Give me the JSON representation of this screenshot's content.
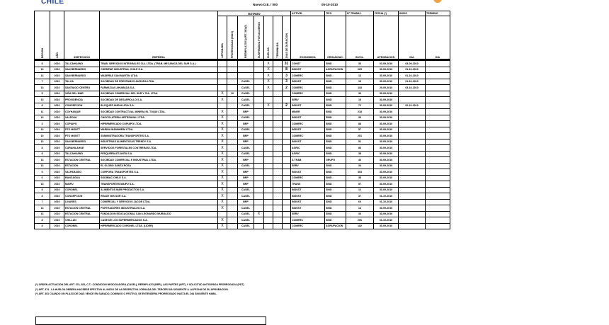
{
  "header": {
    "logo_text": "CHILE",
    "title": "Nuevo D.E. / 000",
    "date": "05-10-2010"
  },
  "columns": {
    "region": "REGION",
    "anio": "AÑO",
    "inspeccion": "INSPECCION",
    "empresa": "EMPRESA",
    "estado": "ESTADO",
    "estado_sub": [
      "APROBADA",
      "PRORROGADA (DIAS)",
      "REEMPLAZOS (ART. 381)(*)",
      "SUSPENDIDA POR ACUERDO",
      "HUELGA",
      "TERMINADA",
      "DIAS DE DURACION"
    ],
    "actividad_top": "ACTIVID.",
    "actividad_bottom": "ECONOMICA",
    "tipo_top": "TIPO",
    "tipo_bottom": "ORGANIZAC.",
    "trab_top": "N° TRABAJ.",
    "trab_bottom": "INVOL.",
    "fecha_top": "FECHA (*)",
    "fecha_bottom": "APROBACION",
    "inicio_top": "INICIO",
    "inicio_bottom": "DIA",
    "termino_top": "TERMINO",
    "termino_bottom": "DIA"
  },
  "rows": [
    {
      "region": "8",
      "anio": "2010",
      "inspeccion": "TALCAHUANO",
      "empresa": "TRAB. SERVICIOS INTEGRALES CIA. LTDA. (TRAB. MECANICA DEL SUR S.A.)",
      "estado": [
        "",
        "",
        "",
        "",
        "X",
        "",
        "31"
      ],
      "actividad": "CONST",
      "tipo": "SIND",
      "trab": "33",
      "fecha": "03-09-2010",
      "inicio": "03-09-2010",
      "termino": ""
    },
    {
      "region": "13",
      "anio": "2010",
      "inspeccion": "SAN BERNARDO",
      "empresa": "CHEMPAR INDUSTRIAL CHILE S.A.",
      "estado": [
        "",
        "",
        "",
        "",
        "X",
        "",
        "8"
      ],
      "actividad": "INDUST",
      "tipo": "AGRUPACION",
      "trab": "265",
      "fecha": "30-09-2010",
      "inicio": "01-10-2010",
      "termino": ""
    },
    {
      "region": "13",
      "anio": "2010",
      "inspeccion": "SAN BERNARDO",
      "empresa": "MADERAS SAN MARTIN LTDA.",
      "estado": [
        "",
        "",
        "",
        "",
        "X",
        "",
        "3"
      ],
      "actividad": "COMERC",
      "tipo": "SIND",
      "trab": "13",
      "fecha": "30-09-2010",
      "inicio": "01-10-2010",
      "termino": ""
    },
    {
      "region": "7",
      "anio": "2010",
      "inspeccion": "TALCA",
      "empresa": "SOCIEDAD DE PRESTAMOS AURORA LTDA.",
      "estado": [
        "",
        "",
        "CASEL",
        "",
        "X",
        "",
        "3"
      ],
      "actividad": "INDUST",
      "tipo": "SIND",
      "trab": "13",
      "fecha": "30-09-2010",
      "inicio": "01-10-2010",
      "termino": ""
    },
    {
      "region": "13",
      "anio": "2010",
      "inspeccion": "SANTIAGO CENTRO",
      "empresa": "FARMACIAS AHUMADA S.A.",
      "estado": [
        "",
        "",
        "CASEL",
        "",
        "X",
        "",
        "2"
      ],
      "actividad": "COMERC",
      "tipo": "SIND",
      "trab": "118",
      "fecha": "29-09-2010",
      "inicio": "03-10-2010",
      "termino": ""
    },
    {
      "region": "5",
      "anio": "2010",
      "inspeccion": "VIÑA DEL MAR",
      "empresa": "SOCIEDAD COMERCIAL DEL SUR Y CIA. LTDA.",
      "estado": [
        "X",
        "10",
        "CASEL",
        "",
        "",
        "",
        ""
      ],
      "actividad": "COMERC",
      "tipo": "SIND",
      "trab": "36",
      "fecha": "30-09-2010",
      "inicio": "",
      "termino": ""
    },
    {
      "region": "13",
      "anio": "2010",
      "inspeccion": "PROVIDENCIA",
      "empresa": "SOCIEDAD DE DESARROLLO S.A.",
      "estado": [
        "X",
        "",
        "CASEL",
        "",
        "",
        "",
        ""
      ],
      "actividad": "SERV",
      "tipo": "SIND",
      "trab": "15",
      "fecha": "30-09-2010",
      "inicio": "",
      "termino": ""
    },
    {
      "region": "8",
      "anio": "2010",
      "inspeccion": "CONCEPCION",
      "empresa": "BLOQUES ANDALUCIA S.A.",
      "estado": [
        "",
        "",
        "CASEL",
        "",
        "X",
        "",
        "2"
      ],
      "actividad": "INDUST",
      "tipo": "SIND",
      "trab": "72",
      "fecha": "30-09-2010",
      "inicio": "02-10-2010",
      "termino": ""
    },
    {
      "region": "11",
      "anio": "2010",
      "inspeccion": "COYHAIQUE",
      "empresa": "SOCIEDAD CONTRACTUAL MINERA EL TOQUI LTDA.",
      "estado": [
        "X",
        "",
        "BRP",
        "",
        "",
        "",
        ""
      ],
      "actividad": "MINER",
      "tipo": "SIND",
      "trab": "218",
      "fecha": "30-09-2010",
      "inicio": "",
      "termino": ""
    },
    {
      "region": "14",
      "anio": "2010",
      "inspeccion": "VALDIVIA",
      "empresa": "CHOCOLATERIA ARTESANAL LTDA.",
      "estado": [
        "X",
        "",
        "CASEL",
        "",
        "",
        "",
        ""
      ],
      "actividad": "INDUST",
      "tipo": "SIND",
      "trab": "33",
      "fecha": "30-09-2010",
      "inicio": "",
      "termino": ""
    },
    {
      "region": "3",
      "anio": "2010",
      "inspeccion": "COPIAPO",
      "empresa": "HIPERMERCADO COPIAPO LTDA.",
      "estado": [
        "X",
        "",
        "BRP",
        "",
        "",
        "",
        ""
      ],
      "actividad": "COMERC",
      "tipo": "SIND",
      "trab": "88",
      "fecha": "30-09-2010",
      "inicio": "",
      "termino": ""
    },
    {
      "region": "10",
      "anio": "2010",
      "inspeccion": "PTO MONTT",
      "empresa": "MARINA MANNHEIM LTDA.",
      "estado": [
        "X",
        "",
        "CASEL",
        "",
        "",
        "",
        ""
      ],
      "actividad": "INDUST",
      "tipo": "SIND",
      "trab": "57",
      "fecha": "30-09-2010",
      "inicio": "",
      "termino": ""
    },
    {
      "region": "10",
      "anio": "2010",
      "inspeccion": "PTO MONTT",
      "empresa": "SUMINISTRADORA TRANSPORTES S.A.",
      "estado": [
        "X",
        "",
        "BRP",
        "",
        "",
        "",
        ""
      ],
      "actividad": "COMERC",
      "tipo": "SIND",
      "trab": "201",
      "fecha": "30-09-2010",
      "inicio": "",
      "termino": ""
    },
    {
      "region": "13",
      "anio": "2010",
      "inspeccion": "SAN BERNARDO",
      "empresa": "INDUSTRIAS ALIMENTICIAS TRENDY S.A.",
      "estado": [
        "X",
        "",
        "BRP",
        "",
        "",
        "",
        ""
      ],
      "actividad": "INDUST",
      "tipo": "SIND",
      "trab": "51",
      "fecha": "30-09-2010",
      "inicio": "",
      "termino": ""
    },
    {
      "region": "8",
      "anio": "2010",
      "inspeccion": "CURANILAHUE",
      "empresa": "SERVICIOS FORESTALES CONTRERAS LTDA.",
      "estado": [
        "X",
        "",
        "CASEL",
        "",
        "",
        "",
        ""
      ],
      "actividad": "AGRIC",
      "tipo": "SIND",
      "trab": "86",
      "fecha": "30-09-2010",
      "inicio": "",
      "termino": ""
    },
    {
      "region": "8",
      "anio": "2010",
      "inspeccion": "TALCAHUANO",
      "empresa": "PESQUERA ATLANTA S.A.",
      "estado": [
        "X",
        "",
        "CASEL",
        "",
        "",
        "",
        ""
      ],
      "actividad": "AGRIC",
      "tipo": "SIND",
      "trab": "38",
      "fecha": "30-09-2010",
      "inicio": "",
      "termino": ""
    },
    {
      "region": "13",
      "anio": "2010",
      "inspeccion": "ESTACION CENTRAL",
      "empresa": "SOCIEDAD COMERCIAL E INDUSTRIAL LTDA.",
      "estado": [
        "X",
        "",
        "BRP",
        "",
        "",
        "",
        ""
      ],
      "actividad": "S.TRAB",
      "tipo": "GRUPO",
      "trab": "43",
      "fecha": "30-09-2010",
      "inicio": "",
      "termino": ""
    },
    {
      "region": "13",
      "anio": "2010",
      "inspeccion": "ESTACION",
      "empresa": "EL GLOBO SANTA ROSA",
      "estado": [
        "X",
        "",
        "CASEL",
        "",
        "",
        "",
        ""
      ],
      "actividad": "SERV",
      "tipo": "SIND",
      "trab": "34",
      "fecha": "30-09-2010",
      "inicio": "",
      "termino": ""
    },
    {
      "region": "5",
      "anio": "2010",
      "inspeccion": "VALPARAISO",
      "empresa": "CORPORA TRANSPORTES S.A.",
      "estado": [
        "X",
        "",
        "BRP",
        "",
        "",
        "",
        ""
      ],
      "actividad": "INDUST",
      "tipo": "SIND",
      "trab": "303",
      "fecha": "30-09-2010",
      "inicio": "",
      "termino": ""
    },
    {
      "region": "6",
      "anio": "2010",
      "inspeccion": "RANCAGUA",
      "empresa": "SODIMAC CHILE S.A.",
      "estado": [
        "X",
        "",
        "BRP",
        "",
        "",
        "",
        ""
      ],
      "actividad": "COMERC",
      "tipo": "SIND",
      "trab": "38",
      "fecha": "30-09-2010",
      "inicio": "",
      "termino": ""
    },
    {
      "region": "13",
      "anio": "2010",
      "inspeccion": "MAIPU",
      "empresa": "TRANSPORTES MAIPU S.A.",
      "estado": [
        "X",
        "",
        "BRP",
        "",
        "",
        "",
        ""
      ],
      "actividad": "TRANS",
      "tipo": "SIND",
      "trab": "57",
      "fecha": "30-09-2010",
      "inicio": "",
      "termino": ""
    },
    {
      "region": "8",
      "anio": "2010",
      "inspeccion": "CORONEL",
      "empresa": "ALIMENTOS MAR PRODUCTOS S.A.",
      "estado": [
        "X",
        "",
        "CASEL",
        "",
        "",
        "",
        ""
      ],
      "actividad": "INDUST",
      "tipo": "SIND",
      "trab": "12",
      "fecha": "30-09-2010",
      "inicio": "",
      "termino": ""
    },
    {
      "region": "8",
      "anio": "2010",
      "inspeccion": "CONCEPCION",
      "empresa": "READY MIX SUR S.A.",
      "estado": [
        "X",
        "",
        "CASEL",
        "",
        "",
        "",
        ""
      ],
      "actividad": "INDUST",
      "tipo": "SIND",
      "trab": "37",
      "fecha": "01-10-2010",
      "inicio": "",
      "termino": ""
    },
    {
      "region": "7",
      "anio": "2010",
      "inspeccion": "LINARES",
      "empresa": "COMERCIAL Y SERVICIOS JACOB LTDA.",
      "estado": [
        "X",
        "",
        "BRP",
        "",
        "",
        "",
        ""
      ],
      "actividad": "INDUST",
      "tipo": "SIND",
      "trab": "63",
      "fecha": "01-10-2010",
      "inicio": "",
      "termino": ""
    },
    {
      "region": "13",
      "anio": "2010",
      "inspeccion": "ESTACION CENTRAL",
      "empresa": "PORTEADORES INDUSTRIALES S.A.",
      "estado": [
        "X",
        "",
        "CASEL",
        "",
        "",
        "",
        ""
      ],
      "actividad": "INDUST",
      "tipo": "SIND",
      "trab": "14",
      "fecha": "30-09-2010",
      "inicio": "",
      "termino": ""
    },
    {
      "region": "13",
      "anio": "2010",
      "inspeccion": "ESTACION CENTRAL",
      "empresa": "FUNDACION EDUCACIONAL SAN LEONARDO MURIALDO",
      "estado": [
        "",
        "",
        "CASEL",
        "X",
        "",
        "",
        ""
      ],
      "actividad": "SERV",
      "tipo": "SIND",
      "trab": "33",
      "fecha": "30-09-2010",
      "inicio": "",
      "termino": ""
    },
    {
      "region": "8",
      "anio": "2010",
      "inspeccion": "CHILLAN",
      "empresa": "CASE DE LOS SUPERMERCADOS S.A.",
      "estado": [
        "X",
        "",
        "CASEL",
        "",
        "",
        "",
        ""
      ],
      "actividad": "COMERC",
      "tipo": "SIND",
      "trab": "206",
      "fecha": "01-10-2010",
      "inicio": "",
      "termino": ""
    },
    {
      "region": "8",
      "anio": "2010",
      "inspeccion": "CORONEL",
      "empresa": "HIPERMERCADO CORONEL LTDA. (LIDER)",
      "estado": [
        "X",
        "",
        "CASEL",
        "",
        "",
        "",
        ""
      ],
      "actividad": "COMERC",
      "tipo": "AGRUPACION",
      "trab": "182",
      "fecha": "30-09-2010",
      "inicio": "",
      "termino": ""
    }
  ],
  "notes": [
    "(*) ORDEN ACTUACION DEL ART. 374, 381, C.T.: CONDICION NEGOCIADORA (CASEL), REEMPLAZO (BRP), LAS PARTES (ART.) Y SOLICITUD ANTICIPADA PRORROGADA (PDT)",
    "(*) ART. 374 - LA HUELGA DEBERA HACERSE EFECTIVA AL INICIO DE LA RESPECTIVA JORNADA DEL TERCER DIA SIGUIENTE A LA FECHA DE SU APROBACION.",
    "(*) ART. 381 CUANDO UN PLAZO DE DIAS VENCE EN SABADO, DOMINGO O FESTIVO, SE ENTENDERA PRORROGADO HASTA EL DIA SIGUIENTE HABIL."
  ]
}
